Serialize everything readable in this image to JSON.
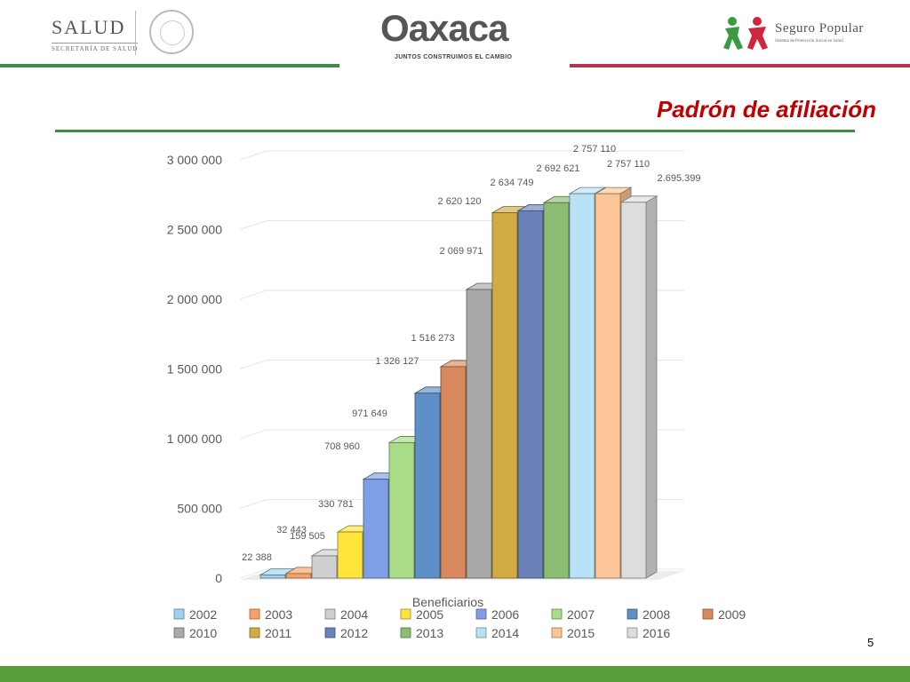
{
  "header": {
    "salud_logo_text": "SALUD",
    "salud_logo_subtext": "SECRETARÍA DE SALUD",
    "oaxaca_logo_text": "Oaxaca",
    "oaxaca_logo_subtext": "JUNTOS CONSTRUIMOS EL CAMBIO",
    "seguro_logo_text": "Seguro Popular",
    "seguro_logo_subtext": "Sistema de Protección Social en Salud"
  },
  "title": "Padrón de afiliación",
  "page_number": "5",
  "colors": {
    "title": "#c00000",
    "rule_green": "#3b8c46",
    "rule_red": "#b3364f",
    "footer": "#5a9e3a"
  },
  "chart_data": {
    "type": "bar",
    "style": "3d-column",
    "xlabel": "Beneficiarios",
    "ylabel": "",
    "ylim": [
      0,
      3000000
    ],
    "yticks": [
      {
        "value": 0,
        "label": "0"
      },
      {
        "value": 500000,
        "label": "500 000"
      },
      {
        "value": 1000000,
        "label": "1 000 000"
      },
      {
        "value": 1500000,
        "label": "1 500 000"
      },
      {
        "value": 2000000,
        "label": "2 000 000"
      },
      {
        "value": 2500000,
        "label": "2 500 000"
      },
      {
        "value": 3000000,
        "label": "3 000 000"
      }
    ],
    "grid": true,
    "legend_position": "bottom",
    "categories": [
      "Beneficiarios"
    ],
    "series": [
      {
        "name": "2002",
        "value": 22388,
        "label": "22 388",
        "color": "#9dd3ee"
      },
      {
        "name": "2003",
        "value": 32443,
        "label": "32 443",
        "color": "#f5a26a"
      },
      {
        "name": "2004",
        "value": 159505,
        "label": "159 505",
        "color": "#cfcfcf"
      },
      {
        "name": "2005",
        "value": 330781,
        "label": "330 781",
        "color": "#ffe43a"
      },
      {
        "name": "2006",
        "value": 708960,
        "label": "708 960",
        "color": "#7e9ee6"
      },
      {
        "name": "2007",
        "value": 971649,
        "label": "971 649",
        "color": "#a8dc86"
      },
      {
        "name": "2008",
        "value": 1326127,
        "label": "1 326 127",
        "color": "#5e8fc7"
      },
      {
        "name": "2009",
        "value": 1516273,
        "label": "1 516 273",
        "color": "#d88a5e"
      },
      {
        "name": "2010",
        "value": 2069971,
        "label": "2 069 971",
        "color": "#a9a9a9"
      },
      {
        "name": "2011",
        "value": 2620120,
        "label": "2 620 120",
        "color": "#d3ab45"
      },
      {
        "name": "2012",
        "value": 2634749,
        "label": "2 634 749",
        "color": "#6a82b8"
      },
      {
        "name": "2013",
        "value": 2692621,
        "label": "2 692 621",
        "color": "#8dbd72"
      },
      {
        "name": "2014",
        "value": 2757110,
        "label": "2 757 110",
        "color": "#b8e2f8"
      },
      {
        "name": "2015",
        "value": 2757110,
        "label": "2 757 110",
        "color": "#fbc595"
      },
      {
        "name": "2016",
        "value": 2695399,
        "label": "2.695.399",
        "color": "#dddddd"
      }
    ]
  }
}
